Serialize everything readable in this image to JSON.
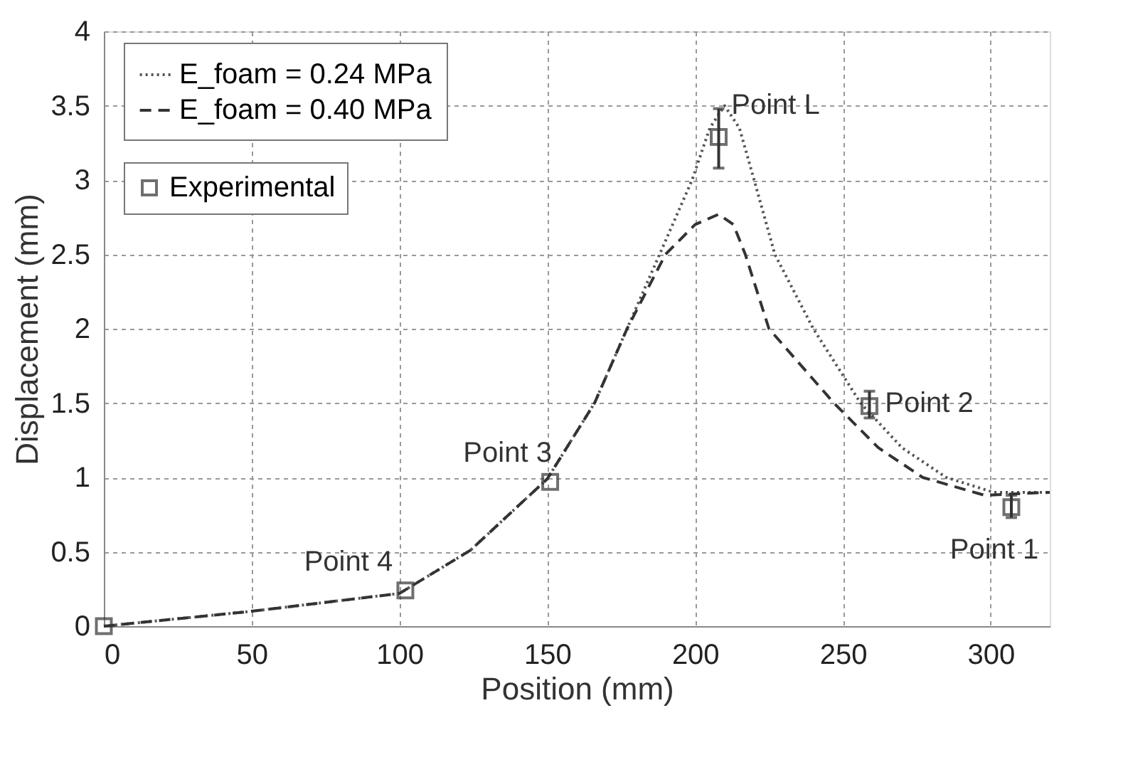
{
  "chart_data": {
    "type": "line",
    "xlabel": "Position (mm)",
    "ylabel": "Displacement (mm)",
    "xlim": [
      0,
      320
    ],
    "ylim": [
      0,
      4
    ],
    "xticks": [
      0,
      50,
      100,
      150,
      200,
      250,
      300
    ],
    "yticks": [
      0,
      0.5,
      1,
      1.5,
      2,
      2.5,
      3,
      3.5,
      4
    ],
    "grid": true,
    "legend": "top left",
    "series": [
      {
        "name": "E_foam = 0.24 MPa",
        "line_style": "dotted",
        "color": "#555555",
        "x": [
          0,
          50,
          100,
          124,
          150,
          166,
          177,
          188,
          199,
          205,
          210,
          215,
          220,
          227,
          240,
          256,
          270,
          285,
          301,
          320
        ],
        "values": [
          0,
          0.1,
          0.22,
          0.51,
          0.99,
          1.5,
          2.0,
          2.5,
          3.0,
          3.35,
          3.5,
          3.35,
          3.0,
          2.5,
          2.0,
          1.5,
          1.2,
          1.0,
          0.9,
          0.9
        ]
      },
      {
        "name": "E_foam = 0.40 MPa",
        "line_style": "dashed",
        "color": "#333333",
        "x": [
          0,
          50,
          100,
          124,
          150,
          166,
          177,
          190,
          200,
          208,
          213,
          217,
          225,
          247,
          262,
          277,
          298,
          320
        ],
        "values": [
          0,
          0.1,
          0.22,
          0.51,
          0.99,
          1.5,
          2.0,
          2.5,
          2.7,
          2.77,
          2.7,
          2.5,
          2.0,
          1.5,
          1.2,
          1.0,
          0.88,
          0.9
        ]
      },
      {
        "name": "Experimental",
        "type": "scatter",
        "marker": "square",
        "color": "#333333",
        "x": [
          0,
          102,
          151,
          208,
          259,
          307
        ],
        "values": [
          0,
          0.24,
          0.97,
          3.29,
          1.48,
          0.8
        ],
        "errors": [
          null,
          null,
          null,
          [
            3.08,
            3.48
          ],
          [
            1.4,
            1.58
          ],
          [
            0.73,
            0.88
          ]
        ]
      }
    ],
    "annotations": [
      {
        "text": "Point 4",
        "x": 102,
        "y": 0.24
      },
      {
        "text": "Point 3",
        "x": 151,
        "y": 0.97
      },
      {
        "text": "Point L",
        "x": 208,
        "y": 3.29
      },
      {
        "text": "Point 2",
        "x": 259,
        "y": 1.48
      },
      {
        "text": "Point 1",
        "x": 307,
        "y": 0.8
      }
    ]
  }
}
